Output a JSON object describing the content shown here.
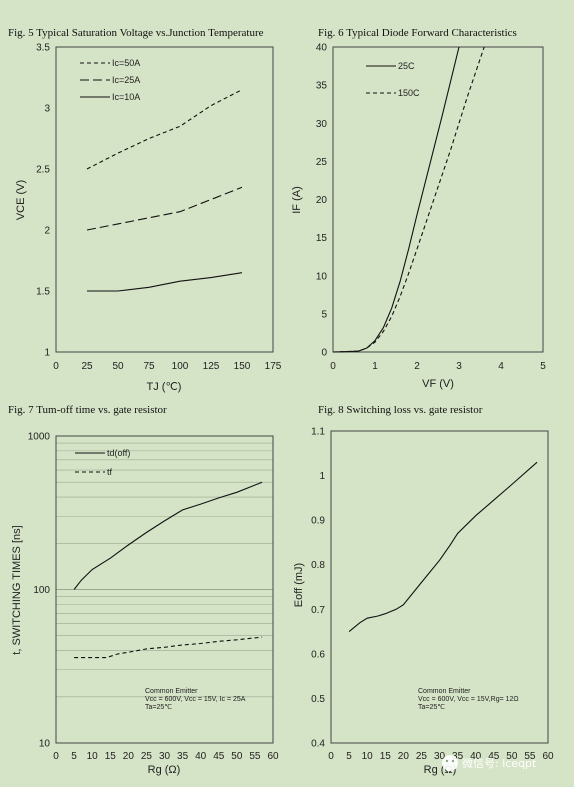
{
  "watermark": "微信号: lceqpt",
  "chart_data": [
    {
      "type": "line",
      "title": "Fig. 5  Typical Saturation Voltage vs.Junction  Temperature",
      "xlabel": "TJ (℃)",
      "ylabel": "VCE (V)",
      "xlim": [
        0,
        175
      ],
      "ylim": [
        1,
        3.5
      ],
      "xticks": [
        0,
        25,
        50,
        75,
        100,
        125,
        150,
        175
      ],
      "yticks": [
        1,
        1.5,
        2,
        2.5,
        3,
        3.5
      ],
      "legend_position": "top-left",
      "series": [
        {
          "name": "Ic=50A",
          "dash": "short",
          "x": [
            25,
            50,
            75,
            100,
            125,
            150
          ],
          "y": [
            2.5,
            2.63,
            2.75,
            2.85,
            3.02,
            3.15
          ]
        },
        {
          "name": "Ic=25A",
          "dash": "long",
          "x": [
            25,
            50,
            75,
            100,
            125,
            150
          ],
          "y": [
            2.0,
            2.05,
            2.1,
            2.15,
            2.25,
            2.35
          ]
        },
        {
          "name": "Ic=10A",
          "dash": "solid",
          "x": [
            25,
            50,
            75,
            100,
            125,
            150
          ],
          "y": [
            1.5,
            1.5,
            1.53,
            1.58,
            1.61,
            1.65
          ]
        }
      ]
    },
    {
      "type": "line",
      "title": "Fig. 6  Typical Diode Forward Characteristics",
      "xlabel": "VF (V)",
      "ylabel": "IF (A)",
      "xlim": [
        0,
        5
      ],
      "ylim": [
        0,
        40
      ],
      "xticks": [
        0,
        1,
        2,
        3,
        4,
        5
      ],
      "yticks": [
        0,
        5,
        10,
        15,
        20,
        25,
        30,
        35,
        40
      ],
      "legend_position": "top-left",
      "series": [
        {
          "name": "25C",
          "dash": "solid",
          "x": [
            0,
            0.6,
            0.8,
            1.0,
            1.2,
            1.4,
            1.6,
            1.8,
            2.0,
            2.3,
            2.6,
            3.0
          ],
          "y": [
            0,
            0.1,
            0.5,
            1.5,
            3.2,
            5.8,
            9.3,
            13.5,
            18,
            24.5,
            31,
            40
          ]
        },
        {
          "name": "150C",
          "dash": "short",
          "x": [
            0,
            0.6,
            0.8,
            1.0,
            1.2,
            1.4,
            1.6,
            1.8,
            2.0,
            2.4,
            2.8,
            3.2,
            3.6
          ],
          "y": [
            0,
            0.1,
            0.5,
            1.3,
            2.7,
            4.7,
            7.3,
            10.3,
            13.5,
            20,
            26.5,
            33.5,
            40
          ]
        }
      ]
    },
    {
      "type": "line",
      "title": "Fig. 7  Tum-off time vs. gate resistor",
      "xlabel": "Rg (Ω)",
      "ylabel": "t, SWITCHING TIMES [ns]",
      "xlim": [
        0,
        60
      ],
      "ylim": [
        10,
        1000
      ],
      "y_scale": "log",
      "xticks": [
        0,
        5,
        10,
        15,
        20,
        25,
        30,
        35,
        40,
        45,
        50,
        55,
        60
      ],
      "yticks": [
        10,
        100,
        1000
      ],
      "grid": true,
      "legend_position": "top-left",
      "annotation": [
        "Common Emitter",
        "Vcc = 600V, Vcc = 15V, Ic = 25A",
        "Ta=25℃"
      ],
      "series": [
        {
          "name": "td(off)",
          "dash": "solid",
          "x": [
            5,
            7,
            10,
            15,
            20,
            25,
            30,
            35,
            40,
            45,
            50,
            57
          ],
          "y": [
            100,
            115,
            135,
            160,
            195,
            235,
            280,
            330,
            360,
            395,
            430,
            500
          ]
        },
        {
          "name": "tf",
          "dash": "short",
          "x": [
            5,
            10,
            14,
            17,
            20,
            25,
            30,
            35,
            40,
            45,
            50,
            57
          ],
          "y": [
            36,
            36,
            36,
            38,
            39,
            41,
            42,
            43.5,
            44.5,
            46,
            47,
            49
          ]
        }
      ]
    },
    {
      "type": "line",
      "title": "Fig. 8  Switching loss vs. gate resistor",
      "xlabel": "Rg (Ω)",
      "ylabel": "Eoff    (mJ)",
      "xlim": [
        0,
        60
      ],
      "ylim": [
        0.4,
        1.1
      ],
      "xticks": [
        0,
        5,
        10,
        15,
        20,
        25,
        30,
        35,
        40,
        45,
        50,
        55,
        60
      ],
      "yticks": [
        0.4,
        0.5,
        0.6,
        0.7,
        0.8,
        0.9,
        1,
        1.1
      ],
      "legend_position": "none",
      "annotation": [
        "Common Emitter",
        "Vcc = 600V, Vcc = 15V,Rg= 12Ω",
        "Ta=25℃"
      ],
      "series": [
        {
          "dash": "solid",
          "x": [
            5,
            8,
            10,
            13,
            15,
            18,
            20,
            25,
            30,
            33,
            35,
            40,
            45,
            50,
            57
          ],
          "y": [
            0.65,
            0.67,
            0.68,
            0.685,
            0.69,
            0.7,
            0.71,
            0.76,
            0.81,
            0.845,
            0.87,
            0.91,
            0.945,
            0.98,
            1.03
          ]
        }
      ]
    }
  ]
}
